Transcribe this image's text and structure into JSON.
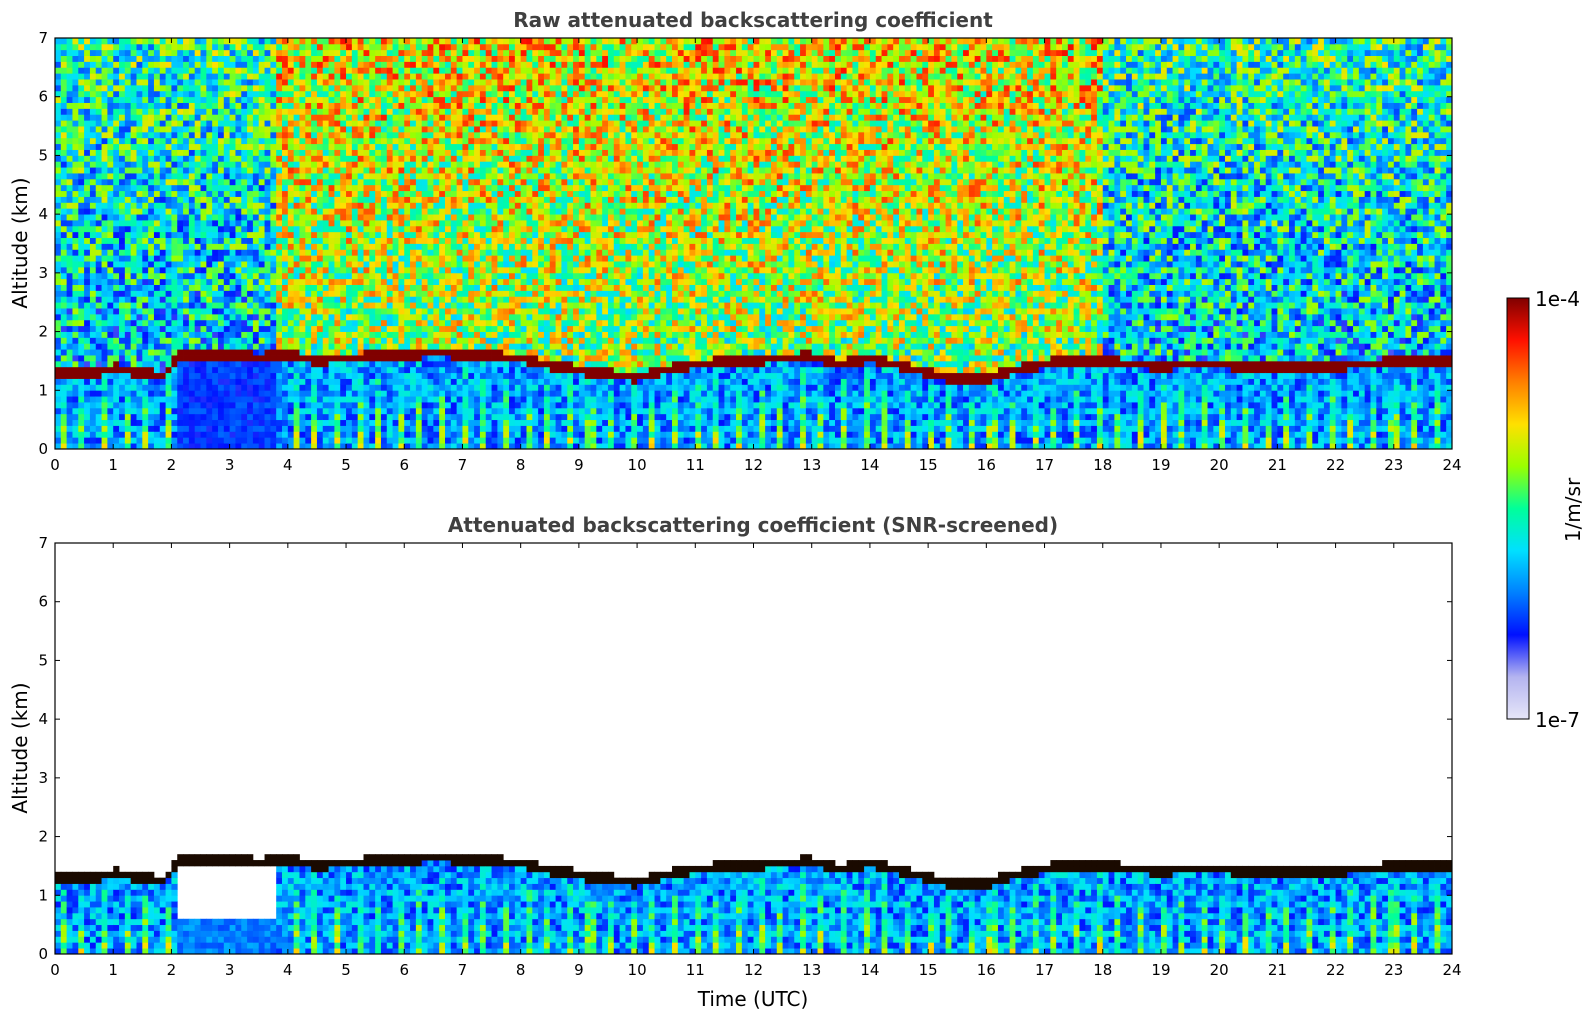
{
  "chart_data": [
    {
      "type": "heatmap",
      "title": "Raw attenuated backscattering coefficient",
      "xlabel": "",
      "ylabel": "Altitude (km)",
      "xlim": [
        0,
        24
      ],
      "ylim": [
        0,
        7
      ],
      "xticks": [
        0,
        1,
        2,
        3,
        4,
        5,
        6,
        7,
        8,
        9,
        10,
        11,
        12,
        13,
        14,
        15,
        16,
        17,
        18,
        19,
        20,
        21,
        22,
        23,
        24
      ],
      "yticks": [
        0,
        1,
        2,
        3,
        4,
        5,
        6,
        7
      ],
      "screened": false,
      "cloud_top_km": [
        [
          0,
          1.32
        ],
        [
          0.5,
          1.28
        ],
        [
          1,
          1.38
        ],
        [
          1.5,
          1.3
        ],
        [
          1.9,
          1.25
        ],
        [
          2.1,
          1.62
        ],
        [
          2.5,
          1.62
        ],
        [
          3,
          1.62
        ],
        [
          3.5,
          1.55
        ],
        [
          3.8,
          1.62
        ],
        [
          4.5,
          1.52
        ],
        [
          5,
          1.55
        ],
        [
          5.5,
          1.58
        ],
        [
          6,
          1.6
        ],
        [
          6.5,
          1.65
        ],
        [
          7,
          1.62
        ],
        [
          7.5,
          1.58
        ],
        [
          8,
          1.55
        ],
        [
          8.5,
          1.42
        ],
        [
          9,
          1.35
        ],
        [
          9.5,
          1.28
        ],
        [
          10,
          1.22
        ],
        [
          10.5,
          1.35
        ],
        [
          11,
          1.45
        ],
        [
          11.5,
          1.48
        ],
        [
          12,
          1.52
        ],
        [
          12.5,
          1.55
        ],
        [
          13,
          1.58
        ],
        [
          13.5,
          1.45
        ],
        [
          14,
          1.55
        ],
        [
          14.5,
          1.42
        ],
        [
          15,
          1.3
        ],
        [
          15.5,
          1.18
        ],
        [
          16,
          1.2
        ],
        [
          16.5,
          1.35
        ],
        [
          17,
          1.45
        ],
        [
          17.5,
          1.52
        ],
        [
          18,
          1.5
        ],
        [
          18.5,
          1.45
        ],
        [
          19,
          1.42
        ],
        [
          19.5,
          1.45
        ],
        [
          20,
          1.45
        ],
        [
          20.5,
          1.4
        ],
        [
          21,
          1.38
        ],
        [
          21.5,
          1.38
        ],
        [
          22,
          1.42
        ],
        [
          22.5,
          1.45
        ],
        [
          23,
          1.48
        ],
        [
          23.5,
          1.52
        ],
        [
          24,
          1.5
        ]
      ]
    },
    {
      "type": "heatmap",
      "title": "Attenuated backscattering coefficient (SNR-screened)",
      "xlabel": "Time (UTC)",
      "ylabel": "Altitude (km)",
      "xlim": [
        0,
        24
      ],
      "ylim": [
        0,
        7
      ],
      "xticks": [
        0,
        1,
        2,
        3,
        4,
        5,
        6,
        7,
        8,
        9,
        10,
        11,
        12,
        13,
        14,
        15,
        16,
        17,
        18,
        19,
        20,
        21,
        22,
        23,
        24
      ],
      "yticks": [
        0,
        1,
        2,
        3,
        4,
        5,
        6,
        7
      ],
      "screened": true,
      "cloud_top_km": [
        [
          0,
          1.32
        ],
        [
          0.5,
          1.28
        ],
        [
          1,
          1.38
        ],
        [
          1.5,
          1.3
        ],
        [
          1.9,
          1.25
        ],
        [
          2.1,
          1.62
        ],
        [
          2.5,
          1.62
        ],
        [
          3,
          1.62
        ],
        [
          3.5,
          1.55
        ],
        [
          3.8,
          1.62
        ],
        [
          4.5,
          1.52
        ],
        [
          5,
          1.55
        ],
        [
          5.5,
          1.58
        ],
        [
          6,
          1.6
        ],
        [
          6.5,
          1.65
        ],
        [
          7,
          1.62
        ],
        [
          7.5,
          1.58
        ],
        [
          8,
          1.55
        ],
        [
          8.5,
          1.42
        ],
        [
          9,
          1.35
        ],
        [
          9.5,
          1.28
        ],
        [
          10,
          1.22
        ],
        [
          10.5,
          1.35
        ],
        [
          11,
          1.45
        ],
        [
          11.5,
          1.48
        ],
        [
          12,
          1.52
        ],
        [
          12.5,
          1.55
        ],
        [
          13,
          1.58
        ],
        [
          13.5,
          1.45
        ],
        [
          14,
          1.55
        ],
        [
          14.5,
          1.42
        ],
        [
          15,
          1.3
        ],
        [
          15.5,
          1.18
        ],
        [
          16,
          1.2
        ],
        [
          16.5,
          1.35
        ],
        [
          17,
          1.45
        ],
        [
          17.5,
          1.52
        ],
        [
          18,
          1.5
        ],
        [
          18.5,
          1.45
        ],
        [
          19,
          1.42
        ],
        [
          19.5,
          1.45
        ],
        [
          20,
          1.45
        ],
        [
          20.5,
          1.4
        ],
        [
          21,
          1.38
        ],
        [
          21.5,
          1.38
        ],
        [
          22,
          1.42
        ],
        [
          22.5,
          1.45
        ],
        [
          23,
          1.48
        ],
        [
          23.5,
          1.52
        ],
        [
          24,
          1.5
        ]
      ]
    }
  ],
  "colorbar": {
    "max_label": "1e-4",
    "min_label": "1e-7",
    "unit_label": "1/m/sr",
    "scale": "log",
    "colormap": [
      "#e6e6f8",
      "#b4b4f0",
      "#0010ff",
      "#0080ff",
      "#00e0ff",
      "#00ff9a",
      "#9aff00",
      "#ffe000",
      "#ff8000",
      "#ff1000",
      "#800000"
    ]
  }
}
